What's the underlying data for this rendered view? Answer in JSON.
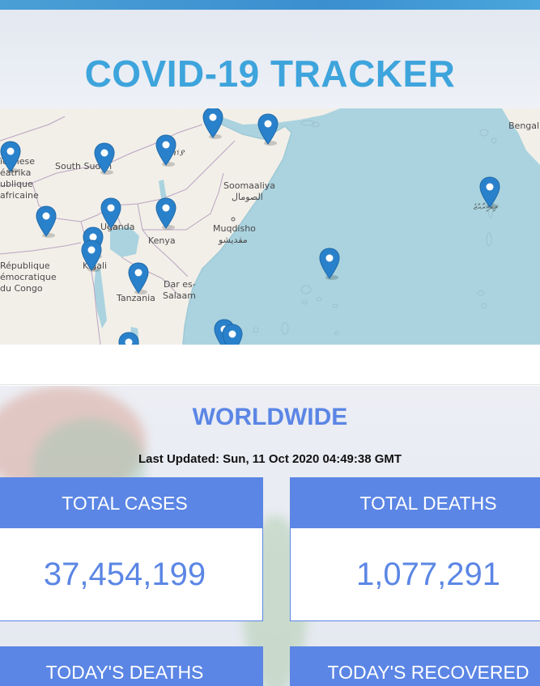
{
  "app": {
    "title": "COVID-19 TRACKER"
  },
  "map": {
    "labels": {
      "soudanese": "ïdanese",
      "centrafrique": "éatrika",
      "publique": "ublique",
      "africaine": "africaine",
      "south_sudan": "South Sudan",
      "amharic": "ጎ፣ያ",
      "soomaaliya": "Soomaaliya",
      "somali_ar": "الصومال",
      "muqdisho": "Muqdisho",
      "muqdisho_ar": "مقديشو",
      "uganda": "Uganda",
      "kenya": "Kenya",
      "kigali": "Kigali",
      "rdc1": "République",
      "rdc2": "émocratique",
      "rdc3": "du Congo",
      "dar1": "Dar es-",
      "dar2": "Salaam",
      "tanzania": "Tanzania",
      "bengal": "Bengalu",
      "maldives": "ދިވެހިރާއްޖެ"
    }
  },
  "worldwide": {
    "title": "WORLDWIDE",
    "updated_label": "Last Updated:",
    "updated_value": "Sun, 11 Oct 2020 04:49:38 GMT",
    "cards": {
      "total_cases": {
        "label": "TOTAL CASES",
        "value": "37,454,199"
      },
      "total_deaths": {
        "label": "TOTAL DEATHS",
        "value": "1,077,291"
      },
      "todays_deaths": {
        "label": "TODAY'S DEATHS"
      },
      "todays_recovered": {
        "label": "TODAY'S RECOVERED"
      }
    }
  },
  "colors": {
    "accent": "#5b86e5",
    "title": "#3ea4dc",
    "water": "#aad3df",
    "land": "#f2efe9",
    "pin": "#2a81cb"
  }
}
